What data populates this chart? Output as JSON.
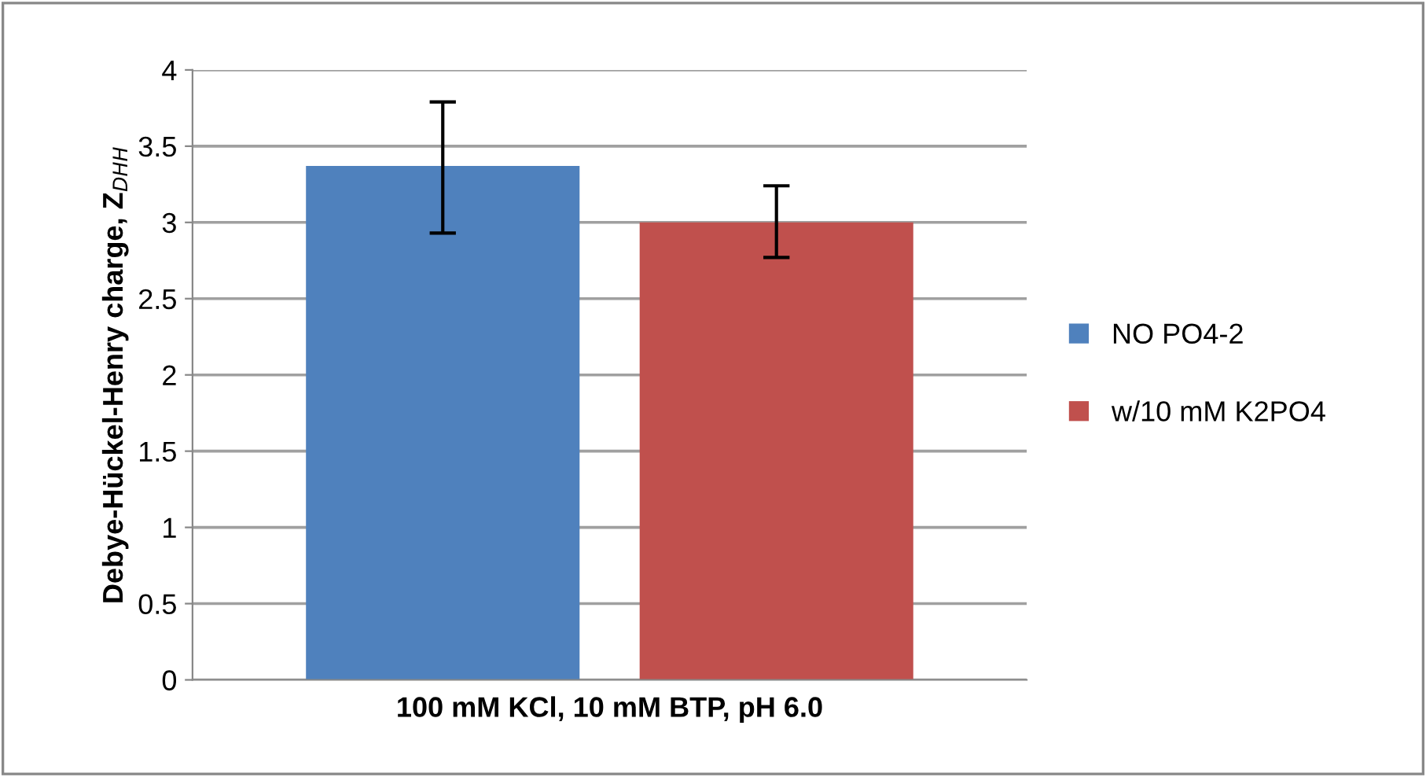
{
  "chart_data": {
    "type": "bar",
    "ylabel": "Debye-Hückel-Henry charge, Z$_{DHH}$",
    "xlabel": "100 mM KCl, 10 mM BTP, pH 6.0",
    "categories": [
      null
    ],
    "series": [
      {
        "name": "NO PO4-2",
        "color": "#4f81bd",
        "values": [
          3.37
        ],
        "errors": [
          [
            2.93,
            3.79
          ]
        ]
      },
      {
        "name": "w/10 mM K2PO4",
        "color": "#c0504d",
        "values": [
          3.0
        ],
        "errors": [
          [
            2.77,
            3.24
          ]
        ]
      }
    ],
    "ylim": [
      0,
      4
    ],
    "yticks": [
      0,
      0.5,
      1,
      1.5,
      2,
      2.5,
      3,
      3.5,
      4
    ],
    "grid": "y",
    "legend": "right"
  }
}
